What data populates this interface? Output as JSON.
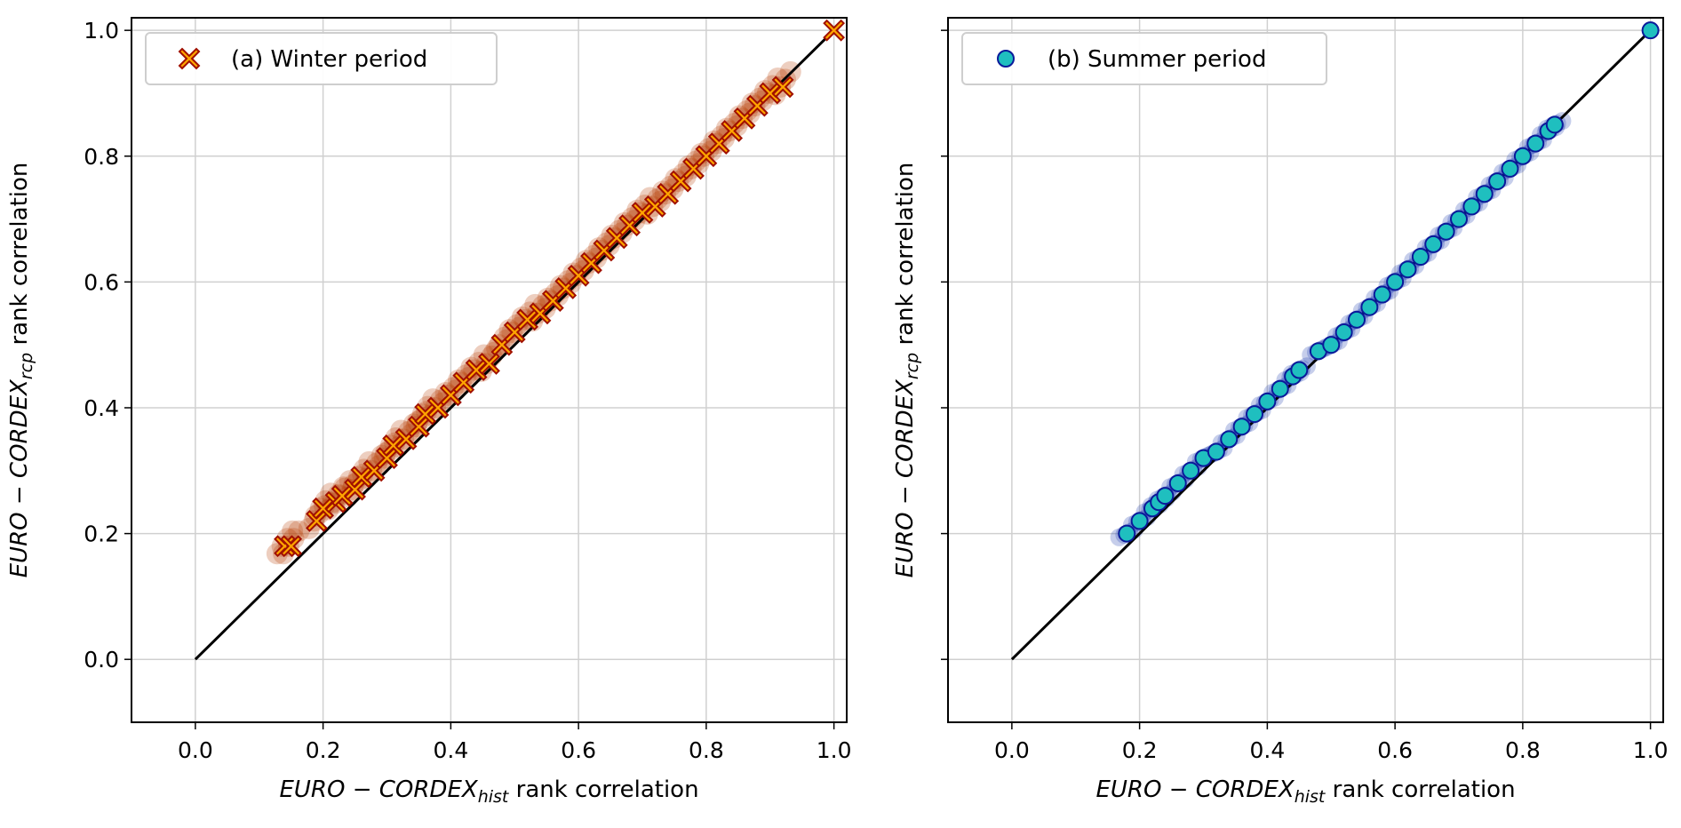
{
  "chart_data": [
    {
      "type": "scatter",
      "panel": "a",
      "legend": "(a) Winter period",
      "legend_placement": "top-left",
      "xlabel_main": "EURO − CORDEX",
      "xlabel_sub": "hist",
      "xlabel_tail": " rank correlation",
      "ylabel_main": "EURO − CORDEX",
      "ylabel_sub": "rcp",
      "ylabel_tail": " rank correlation",
      "xlim": [
        -0.1,
        1.02
      ],
      "ylim": [
        -0.1,
        1.02
      ],
      "xticks": [
        "0.0",
        "0.2",
        "0.4",
        "0.6",
        "0.8",
        "1.0"
      ],
      "yticks": [
        "0.0",
        "0.2",
        "0.4",
        "0.6",
        "0.8",
        "1.0"
      ],
      "grid": true,
      "marker": "X",
      "colors": {
        "fill": "#ffa500",
        "edge": "#a01000",
        "cloud": "#b83a00"
      },
      "reference_line": {
        "x": [
          0,
          1
        ],
        "y": [
          0,
          1
        ]
      },
      "points": [
        [
          0.14,
          0.18
        ],
        [
          0.15,
          0.18
        ],
        [
          0.19,
          0.22
        ],
        [
          0.2,
          0.24
        ],
        [
          0.22,
          0.25
        ],
        [
          0.23,
          0.26
        ],
        [
          0.25,
          0.27
        ],
        [
          0.26,
          0.29
        ],
        [
          0.28,
          0.3
        ],
        [
          0.3,
          0.32
        ],
        [
          0.31,
          0.34
        ],
        [
          0.33,
          0.35
        ],
        [
          0.35,
          0.37
        ],
        [
          0.36,
          0.39
        ],
        [
          0.38,
          0.4
        ],
        [
          0.4,
          0.42
        ],
        [
          0.42,
          0.44
        ],
        [
          0.44,
          0.46
        ],
        [
          0.46,
          0.47
        ],
        [
          0.48,
          0.5
        ],
        [
          0.5,
          0.52
        ],
        [
          0.52,
          0.54
        ],
        [
          0.54,
          0.55
        ],
        [
          0.56,
          0.57
        ],
        [
          0.58,
          0.59
        ],
        [
          0.6,
          0.61
        ],
        [
          0.62,
          0.63
        ],
        [
          0.64,
          0.65
        ],
        [
          0.66,
          0.67
        ],
        [
          0.68,
          0.69
        ],
        [
          0.7,
          0.71
        ],
        [
          0.72,
          0.72
        ],
        [
          0.74,
          0.74
        ],
        [
          0.76,
          0.76
        ],
        [
          0.78,
          0.78
        ],
        [
          0.8,
          0.8
        ],
        [
          0.82,
          0.82
        ],
        [
          0.84,
          0.84
        ],
        [
          0.86,
          0.86
        ],
        [
          0.88,
          0.88
        ],
        [
          0.9,
          0.9
        ],
        [
          0.92,
          0.91
        ],
        [
          1.0,
          1.0
        ]
      ]
    },
    {
      "type": "scatter",
      "panel": "b",
      "legend": "(b) Summer period",
      "legend_placement": "top-left",
      "xlabel_main": "EURO − CORDEX",
      "xlabel_sub": "hist",
      "xlabel_tail": " rank correlation",
      "ylabel_main": "EURO − CORDEX",
      "ylabel_sub": "rcp",
      "ylabel_tail": " rank correlation",
      "xlim": [
        -0.1,
        1.02
      ],
      "ylim": [
        -0.1,
        1.02
      ],
      "xticks": [
        "0.0",
        "0.2",
        "0.4",
        "0.6",
        "0.8",
        "1.0"
      ],
      "yticks": [
        "0.0",
        "0.2",
        "0.4",
        "0.6",
        "0.8",
        "1.0"
      ],
      "grid": true,
      "marker": "o",
      "colors": {
        "fill": "#1fbfbf",
        "edge": "#0a1a9a",
        "cloud": "#1a3ab0"
      },
      "reference_line": {
        "x": [
          0,
          1
        ],
        "y": [
          0,
          1
        ]
      },
      "points": [
        [
          0.18,
          0.2
        ],
        [
          0.2,
          0.22
        ],
        [
          0.22,
          0.24
        ],
        [
          0.23,
          0.25
        ],
        [
          0.24,
          0.26
        ],
        [
          0.26,
          0.28
        ],
        [
          0.28,
          0.3
        ],
        [
          0.3,
          0.32
        ],
        [
          0.32,
          0.33
        ],
        [
          0.34,
          0.35
        ],
        [
          0.36,
          0.37
        ],
        [
          0.38,
          0.39
        ],
        [
          0.4,
          0.41
        ],
        [
          0.42,
          0.43
        ],
        [
          0.44,
          0.45
        ],
        [
          0.45,
          0.46
        ],
        [
          0.48,
          0.49
        ],
        [
          0.5,
          0.5
        ],
        [
          0.52,
          0.52
        ],
        [
          0.54,
          0.54
        ],
        [
          0.56,
          0.56
        ],
        [
          0.58,
          0.58
        ],
        [
          0.6,
          0.6
        ],
        [
          0.62,
          0.62
        ],
        [
          0.64,
          0.64
        ],
        [
          0.66,
          0.66
        ],
        [
          0.68,
          0.68
        ],
        [
          0.7,
          0.7
        ],
        [
          0.72,
          0.72
        ],
        [
          0.74,
          0.74
        ],
        [
          0.76,
          0.76
        ],
        [
          0.78,
          0.78
        ],
        [
          0.8,
          0.8
        ],
        [
          0.82,
          0.82
        ],
        [
          0.84,
          0.84
        ],
        [
          0.85,
          0.85
        ],
        [
          1.0,
          1.0
        ]
      ]
    }
  ]
}
